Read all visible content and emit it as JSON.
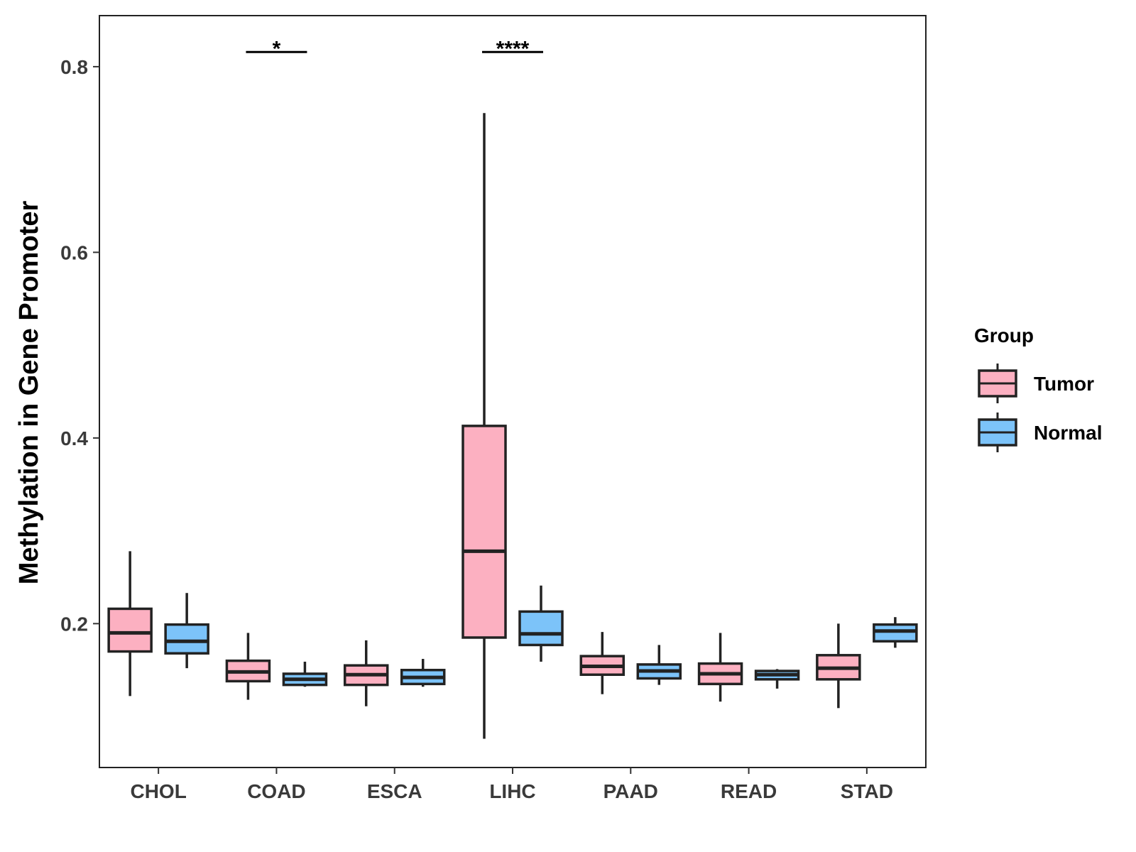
{
  "chart_data": {
    "type": "boxplot",
    "title": "",
    "xlabel": "",
    "ylabel": "Methylation in Gene Promoter",
    "ylim": [
      0.045,
      0.855
    ],
    "yticks": [
      "0.2",
      "0.4",
      "0.6",
      "0.8"
    ],
    "grid": false,
    "legend_position": "right",
    "categories": [
      "CHOL",
      "COAD",
      "ESCA",
      "LIHC",
      "PAAD",
      "READ",
      "STAD"
    ],
    "legend": {
      "title": "Group",
      "entries": [
        {
          "name": "Tumor",
          "color": "#FCB0C1"
        },
        {
          "name": "Normal",
          "color": "#7CC3F9"
        }
      ]
    },
    "series": [
      {
        "name": "Tumor",
        "color": "#FCB0C1",
        "boxes": [
          {
            "category": "CHOL",
            "min": 0.122,
            "q1": 0.17,
            "median": 0.19,
            "q3": 0.216,
            "max": 0.278
          },
          {
            "category": "COAD",
            "min": 0.118,
            "q1": 0.138,
            "median": 0.148,
            "q3": 0.16,
            "max": 0.19
          },
          {
            "category": "ESCA",
            "min": 0.111,
            "q1": 0.134,
            "median": 0.145,
            "q3": 0.155,
            "max": 0.182
          },
          {
            "category": "LIHC",
            "min": 0.076,
            "q1": 0.185,
            "median": 0.278,
            "q3": 0.413,
            "max": 0.75
          },
          {
            "category": "PAAD",
            "min": 0.124,
            "q1": 0.145,
            "median": 0.154,
            "q3": 0.165,
            "max": 0.191
          },
          {
            "category": "READ",
            "min": 0.116,
            "q1": 0.135,
            "median": 0.146,
            "q3": 0.157,
            "max": 0.19
          },
          {
            "category": "STAD",
            "min": 0.109,
            "q1": 0.14,
            "median": 0.152,
            "q3": 0.166,
            "max": 0.2
          }
        ]
      },
      {
        "name": "Normal",
        "color": "#7CC3F9",
        "boxes": [
          {
            "category": "CHOL",
            "min": 0.152,
            "q1": 0.168,
            "median": 0.181,
            "q3": 0.199,
            "max": 0.233
          },
          {
            "category": "COAD",
            "min": 0.132,
            "q1": 0.134,
            "median": 0.14,
            "q3": 0.146,
            "max": 0.159
          },
          {
            "category": "ESCA",
            "min": 0.132,
            "q1": 0.135,
            "median": 0.142,
            "q3": 0.15,
            "max": 0.162
          },
          {
            "category": "LIHC",
            "min": 0.159,
            "q1": 0.177,
            "median": 0.189,
            "q3": 0.213,
            "max": 0.241
          },
          {
            "category": "PAAD",
            "min": 0.134,
            "q1": 0.141,
            "median": 0.149,
            "q3": 0.156,
            "max": 0.177
          },
          {
            "category": "READ",
            "min": 0.13,
            "q1": 0.14,
            "median": 0.145,
            "q3": 0.149,
            "max": 0.151
          },
          {
            "category": "STAD",
            "min": 0.174,
            "q1": 0.181,
            "median": 0.192,
            "q3": 0.199,
            "max": 0.207
          }
        ]
      }
    ],
    "annotations": [
      {
        "category": "COAD",
        "label": "*",
        "y": 0.815
      },
      {
        "category": "LIHC",
        "label": "****",
        "y": 0.815
      }
    ]
  }
}
